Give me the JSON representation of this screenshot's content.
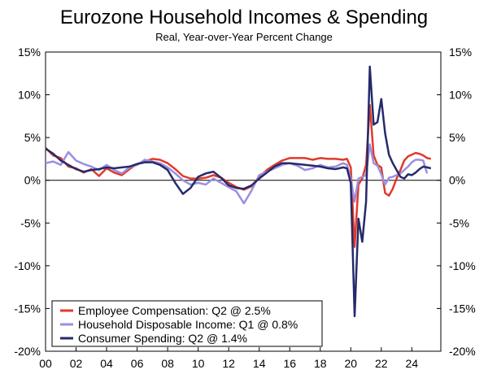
{
  "chart_data": {
    "type": "line",
    "title": "Eurozone Household Incomes & Spending",
    "subtitle": "Real, Year-over-Year Percent Change",
    "xlabel": "",
    "ylabel": "",
    "xlim": [
      2000,
      2025.9
    ],
    "ylim": [
      -20,
      15
    ],
    "y_ticks": [
      15,
      10,
      5,
      0,
      -5,
      -10,
      -15,
      -20
    ],
    "y_tick_labels": [
      "15%",
      "10%",
      "5%",
      "0%",
      "-5%",
      "-10%",
      "-15%",
      "-20%"
    ],
    "x_ticks": [
      2000,
      2002,
      2004,
      2006,
      2008,
      2010,
      2012,
      2014,
      2016,
      2018,
      2020,
      2022,
      2024
    ],
    "x_tick_labels": [
      "00",
      "02",
      "04",
      "06",
      "08",
      "10",
      "12",
      "14",
      "16",
      "18",
      "20",
      "22",
      "24"
    ],
    "grid": false,
    "legend_position": "bottom-left",
    "series": [
      {
        "name": "Employee Compensation: Q2 @ 2.5%",
        "color": "#e03a2a",
        "x": [
          2000.0,
          2000.5,
          2001.0,
          2001.5,
          2002.0,
          2002.5,
          2003.0,
          2003.5,
          2004.0,
          2004.5,
          2005.0,
          2005.5,
          2006.0,
          2006.5,
          2007.0,
          2007.5,
          2008.0,
          2008.5,
          2009.0,
          2009.5,
          2010.0,
          2010.5,
          2011.0,
          2011.5,
          2012.0,
          2012.5,
          2013.0,
          2013.5,
          2014.0,
          2014.5,
          2015.0,
          2015.5,
          2016.0,
          2016.5,
          2017.0,
          2017.5,
          2018.0,
          2018.5,
          2019.0,
          2019.5,
          2019.75,
          2020.0,
          2020.25,
          2020.5,
          2020.75,
          2021.0,
          2021.25,
          2021.5,
          2021.75,
          2022.0,
          2022.25,
          2022.5,
          2022.75,
          2023.0,
          2023.25,
          2023.5,
          2023.75,
          2024.0,
          2024.25,
          2024.5,
          2024.75,
          2025.0,
          2025.25
        ],
        "values": [
          3.8,
          2.9,
          2.6,
          1.6,
          1.4,
          0.9,
          1.3,
          0.5,
          1.4,
          0.9,
          0.6,
          1.3,
          1.9,
          2.2,
          2.5,
          2.4,
          2.0,
          1.3,
          0.5,
          0.2,
          0.2,
          0.3,
          0.6,
          0.3,
          -0.3,
          -0.8,
          -1.1,
          -0.7,
          0.4,
          1.2,
          1.8,
          2.3,
          2.6,
          2.6,
          2.6,
          2.4,
          2.6,
          2.5,
          2.5,
          2.4,
          2.5,
          1.5,
          -7.8,
          -0.5,
          0.2,
          1.8,
          8.8,
          2.9,
          1.8,
          1.5,
          -1.5,
          -1.8,
          -1.0,
          0.2,
          1.2,
          2.3,
          2.8,
          3.0,
          3.2,
          3.1,
          2.9,
          2.6,
          2.5
        ]
      },
      {
        "name": "Household Disposable Income: Q1 @ 0.8%",
        "color": "#9b8fe0",
        "x": [
          2000.0,
          2000.5,
          2001.0,
          2001.5,
          2002.0,
          2002.5,
          2003.0,
          2003.5,
          2004.0,
          2004.5,
          2005.0,
          2005.5,
          2006.0,
          2006.5,
          2007.0,
          2007.5,
          2008.0,
          2008.5,
          2009.0,
          2009.5,
          2010.0,
          2010.5,
          2011.0,
          2011.5,
          2012.0,
          2012.5,
          2013.0,
          2013.5,
          2014.0,
          2014.5,
          2015.0,
          2015.5,
          2016.0,
          2016.5,
          2017.0,
          2017.5,
          2018.0,
          2018.5,
          2019.0,
          2019.5,
          2019.75,
          2020.0,
          2020.25,
          2020.5,
          2020.75,
          2021.0,
          2021.25,
          2021.5,
          2021.75,
          2022.0,
          2022.25,
          2022.5,
          2022.75,
          2023.0,
          2023.25,
          2023.5,
          2023.75,
          2024.0,
          2024.25,
          2024.5,
          2024.75,
          2025.0
        ],
        "values": [
          2.0,
          2.2,
          1.8,
          3.3,
          2.3,
          1.9,
          1.6,
          1.2,
          1.8,
          1.2,
          0.8,
          1.5,
          1.8,
          2.4,
          2.2,
          2.0,
          1.5,
          0.8,
          0.0,
          -0.5,
          -0.3,
          -0.5,
          0.2,
          -0.3,
          -0.8,
          -1.3,
          -2.7,
          -1.2,
          0.6,
          1.0,
          1.4,
          1.8,
          2.0,
          1.7,
          1.2,
          1.4,
          1.8,
          1.5,
          1.6,
          2.0,
          1.8,
          0.2,
          -2.5,
          0.2,
          0.4,
          0.6,
          4.2,
          2.0,
          1.7,
          0.7,
          -0.5,
          0.3,
          0.4,
          0.6,
          0.8,
          1.2,
          1.6,
          2.1,
          2.4,
          2.4,
          2.3,
          0.8
        ]
      },
      {
        "name": "Consumer Spending: Q2 @ 1.4%",
        "color": "#262a6b",
        "x": [
          2000.0,
          2000.5,
          2001.0,
          2001.5,
          2002.0,
          2002.5,
          2003.0,
          2003.5,
          2004.0,
          2004.5,
          2005.0,
          2005.5,
          2006.0,
          2006.5,
          2007.0,
          2007.5,
          2008.0,
          2008.5,
          2009.0,
          2009.5,
          2010.0,
          2010.5,
          2011.0,
          2011.5,
          2012.0,
          2012.5,
          2013.0,
          2013.5,
          2014.0,
          2014.5,
          2015.0,
          2015.5,
          2016.0,
          2016.5,
          2017.0,
          2017.5,
          2018.0,
          2018.5,
          2019.0,
          2019.5,
          2019.75,
          2020.0,
          2020.25,
          2020.5,
          2020.75,
          2021.0,
          2021.25,
          2021.5,
          2021.75,
          2022.0,
          2022.25,
          2022.5,
          2022.75,
          2023.0,
          2023.25,
          2023.5,
          2023.75,
          2024.0,
          2024.25,
          2024.5,
          2024.75,
          2025.0,
          2025.25
        ],
        "values": [
          3.7,
          3.1,
          2.3,
          1.8,
          1.3,
          1.0,
          1.2,
          1.3,
          1.5,
          1.4,
          1.5,
          1.6,
          1.9,
          2.1,
          2.1,
          1.8,
          1.2,
          -0.3,
          -1.6,
          -0.9,
          0.4,
          0.8,
          1.0,
          0.3,
          -0.6,
          -0.9,
          -1.0,
          -0.6,
          0.2,
          0.9,
          1.6,
          2.0,
          2.0,
          1.9,
          1.8,
          1.7,
          1.6,
          1.4,
          1.3,
          1.5,
          1.4,
          -0.3,
          -15.9,
          -4.5,
          -7.2,
          -2.5,
          13.3,
          6.5,
          6.8,
          9.5,
          5.5,
          3.0,
          2.0,
          1.2,
          0.4,
          0.2,
          0.7,
          0.6,
          0.9,
          1.3,
          1.6,
          1.5,
          1.4
        ]
      }
    ]
  }
}
